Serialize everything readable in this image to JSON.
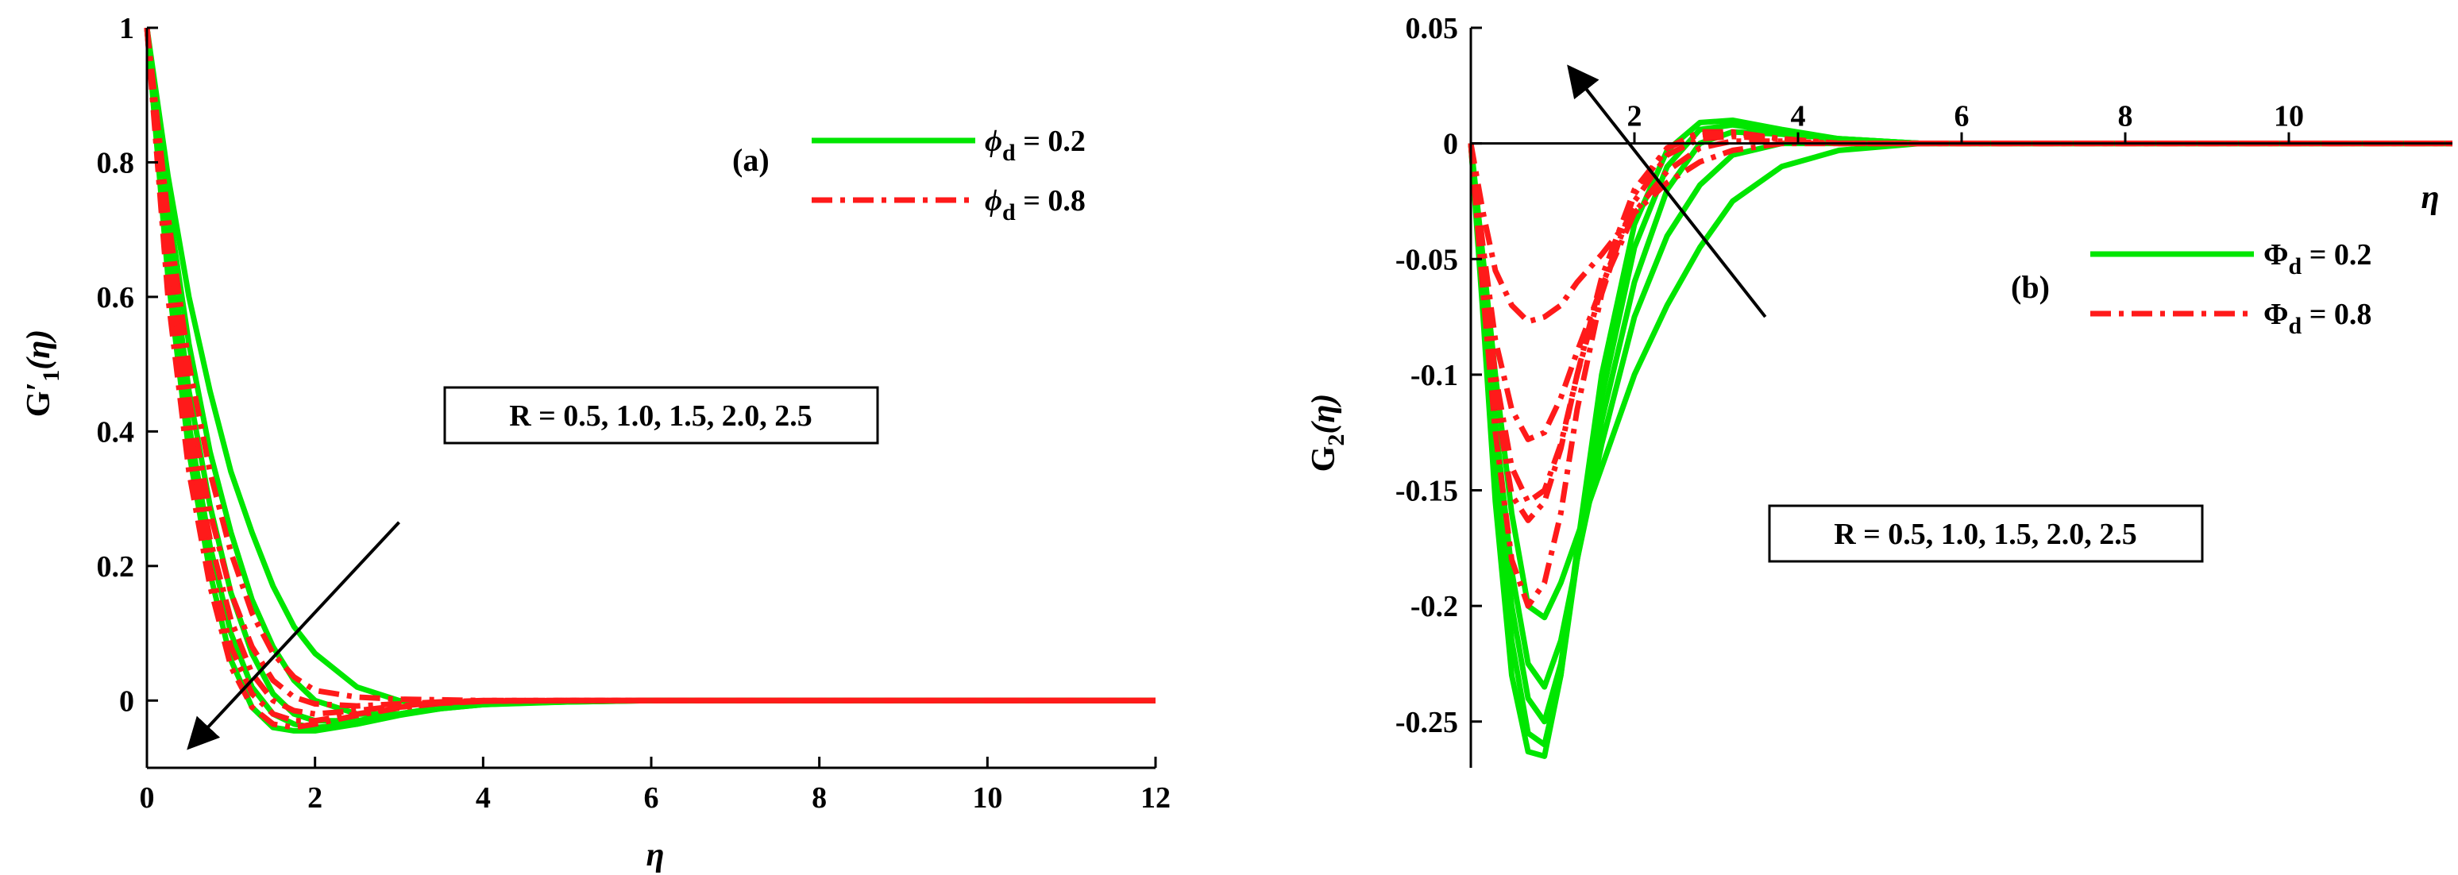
{
  "chart_data": [
    {
      "type": "line",
      "panel_label": "(a)",
      "xlabel": "η",
      "ylabel": "G'1(η)",
      "ylabel_main": "G",
      "ylabel_prime": "′",
      "ylabel_sub": "1",
      "ylabel_arg": "(η)",
      "xlim": [
        0,
        12
      ],
      "ylim": [
        -0.1,
        1
      ],
      "xticks": [
        0,
        2,
        4,
        6,
        8,
        10,
        12
      ],
      "xtick_labels": [
        "0",
        "2",
        "4",
        "6",
        "8",
        "10",
        "12"
      ],
      "yticks": [
        0,
        0.2,
        0.4,
        0.6,
        0.8,
        1
      ],
      "ytick_labels": [
        "0",
        "0.2",
        "0.4",
        "0.6",
        "0.8",
        "1"
      ],
      "grid": false,
      "legend_position": "top-right",
      "legend": [
        {
          "symbol": "ϕ",
          "sub": "d",
          "rest": " = 0.2",
          "color": "#00e600",
          "dash": "solid"
        },
        {
          "symbol": "ϕ",
          "sub": "d",
          "rest": " = 0.8",
          "color": "#ff1a1a",
          "dash": "dashdot"
        }
      ],
      "annotation": "R = 0.5, 1.0, 1.5, 2.0, 2.5",
      "arrow": {
        "from": [
          3.0,
          0.265
        ],
        "to": [
          0.5,
          -0.07
        ]
      },
      "series": [
        {
          "group": "ϕd = 0.2",
          "color": "#00e600",
          "dash": "solid",
          "R": 0.5,
          "x": [
            0,
            0.25,
            0.5,
            0.75,
            1.0,
            1.25,
            1.5,
            1.75,
            2.0,
            2.5,
            3.0,
            3.5,
            4.0,
            5.0,
            6.0,
            7.0,
            12
          ],
          "y": [
            1.0,
            0.78,
            0.6,
            0.46,
            0.34,
            0.25,
            0.17,
            0.11,
            0.07,
            0.02,
            0.0,
            -0.01,
            -0.005,
            -0.002,
            0,
            0,
            0
          ]
        },
        {
          "group": "ϕd = 0.2",
          "color": "#00e600",
          "dash": "solid",
          "R": 1.0,
          "x": [
            0,
            0.25,
            0.5,
            0.75,
            1.0,
            1.25,
            1.5,
            1.75,
            2.0,
            2.5,
            3.0,
            3.5,
            4.0,
            5.0,
            6.0,
            7.0,
            12
          ],
          "y": [
            1.0,
            0.74,
            0.53,
            0.37,
            0.25,
            0.15,
            0.08,
            0.03,
            0.0,
            -0.02,
            -0.02,
            -0.012,
            -0.006,
            -0.002,
            0,
            0,
            0
          ]
        },
        {
          "group": "ϕd = 0.2",
          "color": "#00e600",
          "dash": "solid",
          "R": 1.5,
          "x": [
            0,
            0.25,
            0.5,
            0.75,
            1.0,
            1.25,
            1.5,
            1.75,
            2.0,
            2.5,
            3.0,
            3.5,
            4.0,
            5.0,
            6.0,
            7.0,
            12
          ],
          "y": [
            1.0,
            0.7,
            0.46,
            0.29,
            0.16,
            0.07,
            0.01,
            -0.02,
            -0.03,
            -0.03,
            -0.02,
            -0.01,
            -0.005,
            -0.001,
            0,
            0,
            0
          ]
        },
        {
          "group": "ϕd = 0.2",
          "color": "#00e600",
          "dash": "solid",
          "R": 2.0,
          "x": [
            0,
            0.25,
            0.5,
            0.75,
            1.0,
            1.25,
            1.5,
            1.75,
            2.0,
            2.5,
            3.0,
            3.5,
            4.0,
            5.0,
            6.0,
            7.0,
            12
          ],
          "y": [
            1.0,
            0.66,
            0.41,
            0.23,
            0.1,
            0.02,
            -0.02,
            -0.035,
            -0.04,
            -0.035,
            -0.022,
            -0.012,
            -0.006,
            -0.001,
            0,
            0,
            0
          ]
        },
        {
          "group": "ϕd = 0.2",
          "color": "#00e600",
          "dash": "solid",
          "R": 2.5,
          "x": [
            0,
            0.25,
            0.5,
            0.75,
            1.0,
            1.25,
            1.5,
            1.75,
            2.0,
            2.5,
            3.0,
            3.5,
            4.0,
            5.0,
            6.0,
            7.0,
            12
          ],
          "y": [
            1.0,
            0.63,
            0.37,
            0.19,
            0.06,
            -0.01,
            -0.04,
            -0.045,
            -0.045,
            -0.035,
            -0.02,
            -0.01,
            -0.005,
            -0.001,
            0,
            0,
            0
          ]
        },
        {
          "group": "ϕd = 0.8",
          "color": "#ff1a1a",
          "dash": "dashdot",
          "R": 0.5,
          "x": [
            0,
            0.25,
            0.5,
            0.75,
            1.0,
            1.25,
            1.5,
            1.75,
            2.0,
            2.5,
            3.0,
            3.5,
            4.0,
            5.0,
            6.0,
            12
          ],
          "y": [
            1.0,
            0.72,
            0.5,
            0.34,
            0.22,
            0.13,
            0.07,
            0.035,
            0.015,
            0.005,
            0.002,
            0.001,
            0,
            0,
            0,
            0
          ]
        },
        {
          "group": "ϕd = 0.8",
          "color": "#ff1a1a",
          "dash": "dashdot",
          "R": 1.0,
          "x": [
            0,
            0.25,
            0.5,
            0.75,
            1.0,
            1.25,
            1.5,
            1.75,
            2.0,
            2.5,
            3.0,
            3.5,
            4.0,
            5.0,
            6.0,
            12
          ],
          "y": [
            1.0,
            0.69,
            0.45,
            0.28,
            0.16,
            0.08,
            0.03,
            0.005,
            -0.005,
            -0.008,
            -0.005,
            -0.002,
            0,
            0,
            0,
            0
          ]
        },
        {
          "group": "ϕd = 0.8",
          "color": "#ff1a1a",
          "dash": "dashdot",
          "R": 1.5,
          "x": [
            0,
            0.25,
            0.5,
            0.75,
            1.0,
            1.25,
            1.5,
            1.75,
            2.0,
            2.5,
            3.0,
            3.5,
            4.0,
            5.0,
            6.0,
            12
          ],
          "y": [
            1.0,
            0.66,
            0.41,
            0.24,
            0.12,
            0.04,
            0.0,
            -0.015,
            -0.02,
            -0.015,
            -0.008,
            -0.003,
            -0.001,
            0,
            0,
            0
          ]
        },
        {
          "group": "ϕd = 0.8",
          "color": "#ff1a1a",
          "dash": "dashdot",
          "R": 2.0,
          "x": [
            0,
            0.25,
            0.5,
            0.75,
            1.0,
            1.25,
            1.5,
            1.75,
            2.0,
            2.5,
            3.0,
            3.5,
            4.0,
            5.0,
            6.0,
            12
          ],
          "y": [
            1.0,
            0.63,
            0.37,
            0.2,
            0.08,
            0.01,
            -0.02,
            -0.03,
            -0.03,
            -0.02,
            -0.01,
            -0.004,
            -0.001,
            0,
            0,
            0
          ]
        },
        {
          "group": "ϕd = 0.8",
          "color": "#ff1a1a",
          "dash": "dashdot",
          "R": 2.5,
          "x": [
            0,
            0.25,
            0.5,
            0.75,
            1.0,
            1.25,
            1.5,
            1.75,
            2.0,
            2.5,
            3.0,
            3.5,
            4.0,
            5.0,
            6.0,
            12
          ],
          "y": [
            1.0,
            0.6,
            0.34,
            0.17,
            0.05,
            -0.01,
            -0.035,
            -0.04,
            -0.035,
            -0.022,
            -0.011,
            -0.004,
            -0.001,
            0,
            0,
            0
          ]
        }
      ]
    },
    {
      "type": "line",
      "panel_label": "(b)",
      "xlabel": "η",
      "ylabel": "G2(η)",
      "ylabel_main": "G",
      "ylabel_sub": "2",
      "ylabel_arg": "(η)",
      "xlim": [
        0,
        12
      ],
      "ylim": [
        -0.27,
        0.05
      ],
      "xticks": [
        2,
        4,
        6,
        8,
        10
      ],
      "xtick_labels": [
        "2",
        "4",
        "6",
        "8",
        "10"
      ],
      "yticks": [
        -0.25,
        -0.2,
        -0.15,
        -0.1,
        -0.05,
        0,
        0.05
      ],
      "ytick_labels": [
        "-0.25",
        "-0.2",
        "-0.15",
        "-0.1",
        "-0.05",
        "0",
        "0.05"
      ],
      "grid": false,
      "legend_position": "right",
      "legend": [
        {
          "symbol": "Φ",
          "sub": "d",
          "rest": " = 0.2",
          "color": "#00e600",
          "dash": "solid"
        },
        {
          "symbol": "Φ",
          "sub": "d",
          "rest": " = 0.8",
          "color": "#ff1a1a",
          "dash": "dashdot"
        }
      ],
      "annotation": "R = 0.5, 1.0, 1.5, 2.0, 2.5",
      "arrow": {
        "from": [
          3.6,
          -0.075
        ],
        "to": [
          1.2,
          0.033
        ]
      },
      "series": [
        {
          "group": "Φd = 0.2",
          "color": "#00e600",
          "dash": "solid",
          "R": 0.5,
          "x": [
            0,
            0.15,
            0.3,
            0.5,
            0.7,
            0.9,
            1.1,
            1.3,
            1.6,
            2.0,
            2.4,
            2.8,
            3.2,
            3.8,
            4.5,
            5.5,
            7,
            12
          ],
          "y": [
            0,
            -0.05,
            -0.1,
            -0.16,
            -0.2,
            -0.205,
            -0.19,
            -0.17,
            -0.14,
            -0.1,
            -0.07,
            -0.045,
            -0.025,
            -0.01,
            -0.003,
            0,
            0,
            0
          ]
        },
        {
          "group": "Φd = 0.2",
          "color": "#00e600",
          "dash": "solid",
          "R": 1.0,
          "x": [
            0,
            0.15,
            0.3,
            0.5,
            0.7,
            0.9,
            1.1,
            1.3,
            1.6,
            2.0,
            2.4,
            2.8,
            3.2,
            3.8,
            4.5,
            5.5,
            7,
            12
          ],
          "y": [
            0,
            -0.06,
            -0.12,
            -0.185,
            -0.225,
            -0.235,
            -0.215,
            -0.18,
            -0.13,
            -0.075,
            -0.04,
            -0.018,
            -0.005,
            0.0,
            0.0,
            0,
            0,
            0
          ]
        },
        {
          "group": "Φd = 0.2",
          "color": "#00e600",
          "dash": "solid",
          "R": 1.5,
          "x": [
            0,
            0.15,
            0.3,
            0.5,
            0.7,
            0.9,
            1.1,
            1.3,
            1.6,
            2.0,
            2.4,
            2.8,
            3.2,
            3.8,
            4.5,
            5.5,
            7,
            12
          ],
          "y": [
            0,
            -0.065,
            -0.135,
            -0.2,
            -0.24,
            -0.25,
            -0.225,
            -0.18,
            -0.12,
            -0.06,
            -0.02,
            0.0,
            0.005,
            0.004,
            0.002,
            0,
            0,
            0
          ]
        },
        {
          "group": "Φd = 0.2",
          "color": "#00e600",
          "dash": "solid",
          "R": 2.0,
          "x": [
            0,
            0.15,
            0.3,
            0.5,
            0.7,
            0.9,
            1.1,
            1.3,
            1.6,
            2.0,
            2.4,
            2.8,
            3.2,
            3.8,
            4.5,
            5.5,
            7,
            12
          ],
          "y": [
            0,
            -0.07,
            -0.145,
            -0.215,
            -0.255,
            -0.26,
            -0.23,
            -0.18,
            -0.11,
            -0.045,
            -0.01,
            0.006,
            0.008,
            0.005,
            0.002,
            0,
            0,
            0
          ]
        },
        {
          "group": "Φd = 0.2",
          "color": "#00e600",
          "dash": "solid",
          "R": 2.5,
          "x": [
            0,
            0.15,
            0.3,
            0.5,
            0.7,
            0.9,
            1.1,
            1.3,
            1.6,
            2.0,
            2.4,
            2.8,
            3.2,
            3.8,
            4.5,
            5.5,
            7,
            12
          ],
          "y": [
            0,
            -0.075,
            -0.155,
            -0.23,
            -0.263,
            -0.265,
            -0.23,
            -0.175,
            -0.1,
            -0.035,
            -0.003,
            0.009,
            0.01,
            0.006,
            0.002,
            0,
            0,
            0
          ]
        },
        {
          "group": "Φd = 0.8",
          "color": "#ff1a1a",
          "dash": "dashdot",
          "R": 0.5,
          "x": [
            0,
            0.15,
            0.3,
            0.5,
            0.7,
            0.9,
            1.1,
            1.3,
            1.6,
            2.0,
            2.4,
            2.8,
            3.2,
            3.8,
            4.5,
            5.5,
            12
          ],
          "y": [
            0,
            -0.03,
            -0.055,
            -0.07,
            -0.077,
            -0.075,
            -0.07,
            -0.06,
            -0.048,
            -0.03,
            -0.017,
            -0.008,
            -0.003,
            0,
            0,
            0,
            0
          ]
        },
        {
          "group": "Φd = 0.8",
          "color": "#ff1a1a",
          "dash": "dashdot",
          "R": 1.0,
          "x": [
            0,
            0.15,
            0.3,
            0.5,
            0.7,
            0.9,
            1.1,
            1.3,
            1.6,
            2.0,
            2.4,
            2.8,
            3.2,
            3.8,
            4.5,
            5.5,
            12
          ],
          "y": [
            0,
            -0.045,
            -0.085,
            -0.115,
            -0.128,
            -0.125,
            -0.11,
            -0.09,
            -0.062,
            -0.03,
            -0.012,
            -0.002,
            0.001,
            0.001,
            0,
            0,
            0
          ]
        },
        {
          "group": "Φd = 0.8",
          "color": "#ff1a1a",
          "dash": "dashdot",
          "R": 1.5,
          "x": [
            0,
            0.15,
            0.3,
            0.5,
            0.7,
            0.9,
            1.1,
            1.3,
            1.6,
            2.0,
            2.4,
            2.8,
            3.2,
            3.8,
            4.5,
            5.5,
            12
          ],
          "y": [
            0,
            -0.055,
            -0.1,
            -0.14,
            -0.155,
            -0.15,
            -0.13,
            -0.1,
            -0.062,
            -0.025,
            -0.005,
            0.002,
            0.003,
            0.002,
            0,
            0,
            0
          ]
        },
        {
          "group": "Φd = 0.8",
          "color": "#ff1a1a",
          "dash": "dashdot",
          "R": 2.0,
          "x": [
            0,
            0.15,
            0.3,
            0.5,
            0.7,
            0.9,
            1.1,
            1.3,
            1.6,
            2.0,
            2.4,
            2.8,
            3.2,
            3.8,
            4.5,
            5.5,
            12
          ],
          "y": [
            0,
            -0.06,
            -0.11,
            -0.152,
            -0.163,
            -0.155,
            -0.132,
            -0.1,
            -0.058,
            -0.02,
            -0.002,
            0.004,
            0.004,
            0.002,
            0,
            0,
            0
          ]
        },
        {
          "group": "Φd = 0.8",
          "color": "#ff1a1a",
          "dash": "dashdot",
          "R": 2.5,
          "x": [
            0,
            0.15,
            0.3,
            0.5,
            0.7,
            0.9,
            1.1,
            1.3,
            1.6,
            2.0,
            2.4,
            2.8,
            3.2,
            3.8,
            4.5,
            5.5,
            12
          ],
          "y": [
            0,
            -0.065,
            -0.125,
            -0.18,
            -0.2,
            -0.19,
            -0.16,
            -0.115,
            -0.065,
            -0.022,
            -0.002,
            0.005,
            0.005,
            0.002,
            0,
            0,
            0
          ]
        }
      ]
    }
  ]
}
